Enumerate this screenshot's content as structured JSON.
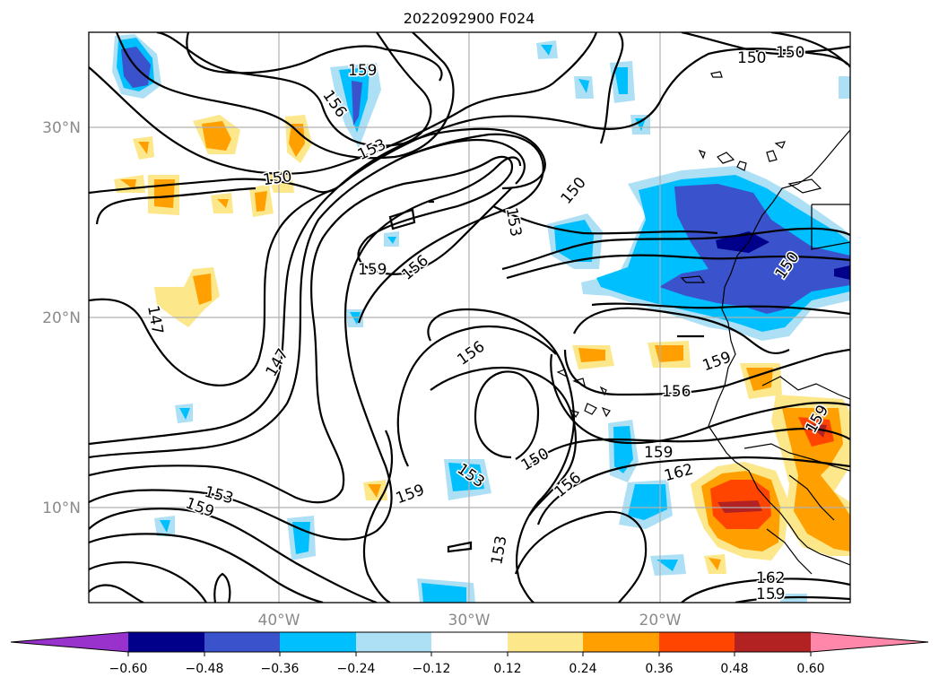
{
  "title": "2022092900 F024",
  "axes": {
    "lat_labels": [
      "30°N",
      "20°N",
      "10°N"
    ],
    "lon_labels": [
      "40°W",
      "30°W",
      "20°W"
    ]
  },
  "contour_levels_shown": [
    "150",
    "150",
    "159",
    "156",
    "153",
    "150",
    "150",
    "153",
    "159",
    "156",
    "147",
    "147",
    "150",
    "156",
    "159",
    "156",
    "159",
    "150",
    "159",
    "162",
    "156",
    "159",
    "153",
    "153",
    "153",
    "162",
    "159",
    "156",
    "159"
  ],
  "colorbar": {
    "colors": [
      "#9932cc",
      "#00008b",
      "#3a52cc",
      "#00bfff",
      "#ade0f5",
      "#ffffff",
      "#fce78a",
      "#ff9f00",
      "#ff4500",
      "#b22222",
      "#ff88aa"
    ],
    "ticks": [
      "−0.60",
      "−0.48",
      "−0.36",
      "−0.24",
      "−0.12",
      "0.12",
      "0.24",
      "0.36",
      "0.48",
      "0.60"
    ]
  },
  "chart_data": {
    "type": "contour",
    "title": "2022092900 F024",
    "lat_range": [
      5,
      35
    ],
    "lon_range": [
      -50,
      -10
    ],
    "lat_ticks": [
      30,
      20,
      10
    ],
    "lon_ticks": [
      -40,
      -30,
      -20
    ],
    "contour_levels": [
      147,
      150,
      153,
      156,
      159,
      162
    ],
    "fill_levels": [
      -0.6,
      -0.48,
      -0.36,
      -0.24,
      -0.12,
      0.12,
      0.24,
      0.36,
      0.48,
      0.6
    ]
  }
}
